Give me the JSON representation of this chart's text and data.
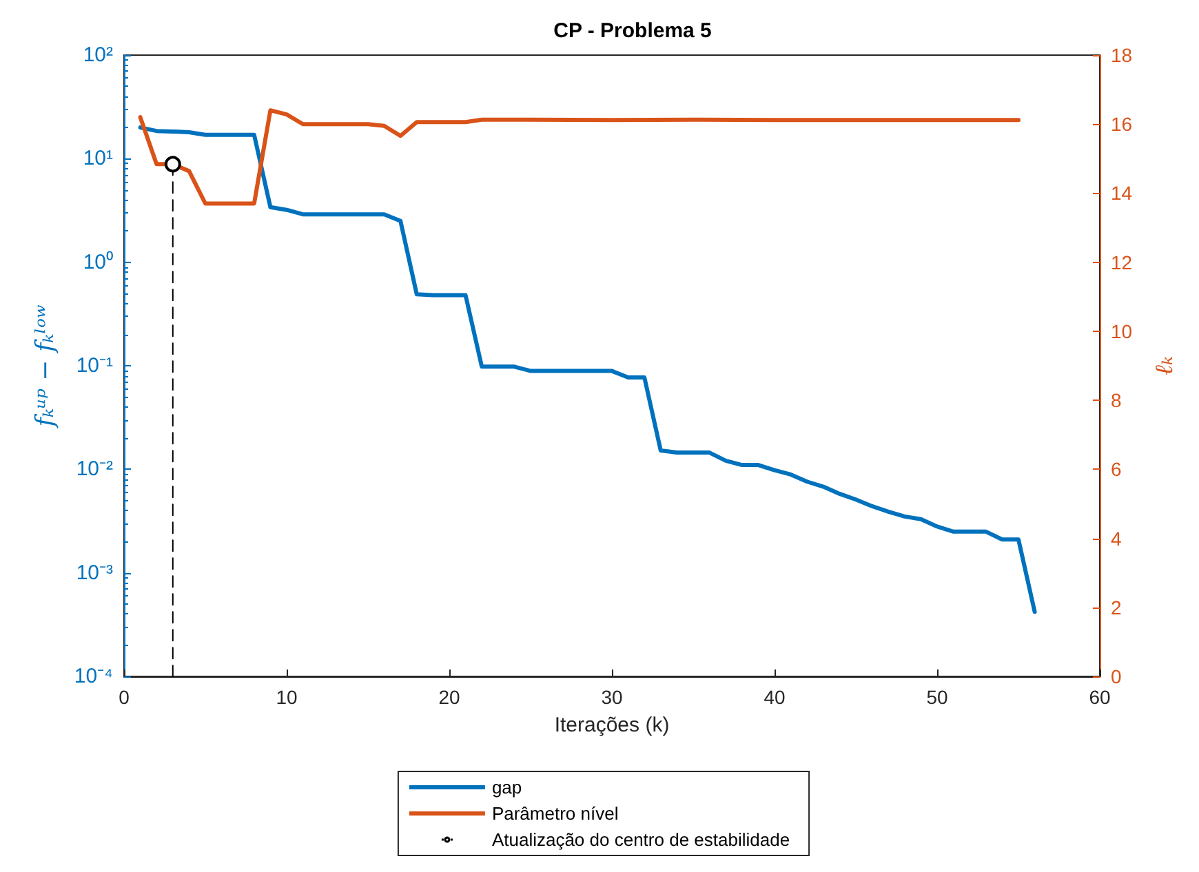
{
  "chart_data": {
    "type": "line",
    "title": "CP - Problema 5",
    "xlabel": "Iterações (k)",
    "ylabel": "fₖᵘᵖ − fₖˡᵒʷ",
    "y2label": "ℓₖ",
    "log": "y",
    "grid": false,
    "legend": "bottom",
    "marker": "none",
    "line_style": "solid",
    "xlim": [
      0,
      60
    ],
    "xticks": [
      0,
      10,
      20,
      30,
      40,
      50,
      60
    ],
    "ylim": [
      0.0001,
      100
    ],
    "yticks": [
      {
        "value": 0.0001,
        "label": "10⁻⁴"
      },
      {
        "value": 0.001,
        "label": "10⁻³"
      },
      {
        "value": 0.01,
        "label": "10⁻²"
      },
      {
        "value": 0.1,
        "label": "10⁻¹"
      },
      {
        "value": 1,
        "label": "10⁰"
      },
      {
        "value": 10,
        "label": "10¹"
      },
      {
        "value": 100,
        "label": "10²"
      }
    ],
    "y2lim": [
      0,
      18
    ],
    "y2ticks": [
      0,
      2,
      4,
      6,
      8,
      10,
      12,
      14,
      16,
      18
    ],
    "series": [
      {
        "name": "gap",
        "color": "#0072bd",
        "x": [
          1,
          2,
          3,
          4,
          5,
          6,
          7,
          8,
          9,
          10,
          11,
          12,
          13,
          14,
          15,
          16,
          17,
          18,
          19,
          20,
          21,
          22,
          23,
          24,
          25,
          26,
          27,
          28,
          29,
          30,
          31,
          32,
          33,
          34,
          35,
          36,
          37,
          38,
          39,
          40,
          41,
          42,
          43,
          44,
          45,
          46,
          47,
          48,
          49,
          50,
          51,
          52,
          53,
          54,
          55,
          56
        ],
        "values": [
          20,
          18.5,
          18.3,
          18,
          17,
          17,
          17,
          17,
          3.4,
          3.2,
          2.9,
          2.9,
          2.9,
          2.9,
          2.9,
          2.9,
          2.5,
          0.49,
          0.48,
          0.48,
          0.48,
          0.098,
          0.098,
          0.098,
          0.089,
          0.089,
          0.089,
          0.089,
          0.089,
          0.089,
          0.077,
          0.077,
          0.0152,
          0.0145,
          0.0145,
          0.0145,
          0.0121,
          0.011,
          0.011,
          0.0098,
          0.0089,
          0.0076,
          0.0068,
          0.0058,
          0.0051,
          0.0044,
          0.0039,
          0.0035,
          0.0033,
          0.0028,
          0.0025,
          0.0025,
          0.0025,
          0.0021,
          0.0021,
          0.00042
        ]
      },
      {
        "name": "Parâmetro nível",
        "color": "#d95319",
        "axis": "y2",
        "x": [
          1,
          2,
          3,
          4,
          5,
          6,
          7,
          8,
          9,
          10,
          11,
          12,
          13,
          14,
          15,
          16,
          17,
          18,
          19,
          20,
          21,
          22,
          25,
          30,
          35,
          40,
          45,
          50,
          55
        ],
        "values": [
          16.2,
          14.84,
          14.84,
          14.64,
          13.7,
          13.7,
          13.7,
          13.7,
          16.4,
          16.28,
          16,
          16,
          16,
          16,
          16,
          15.95,
          15.66,
          16.06,
          16.06,
          16.06,
          16.06,
          16.13,
          16.13,
          16.12,
          16.13,
          16.12,
          16.12,
          16.12,
          16.12
        ]
      },
      {
        "name": "Atualização do centro de estabilidade",
        "color": "#000000",
        "axis": "y2",
        "marker": "circle",
        "line_style": "dashed",
        "x": [
          3,
          3
        ],
        "values": [
          14.84,
          0
        ]
      }
    ]
  }
}
